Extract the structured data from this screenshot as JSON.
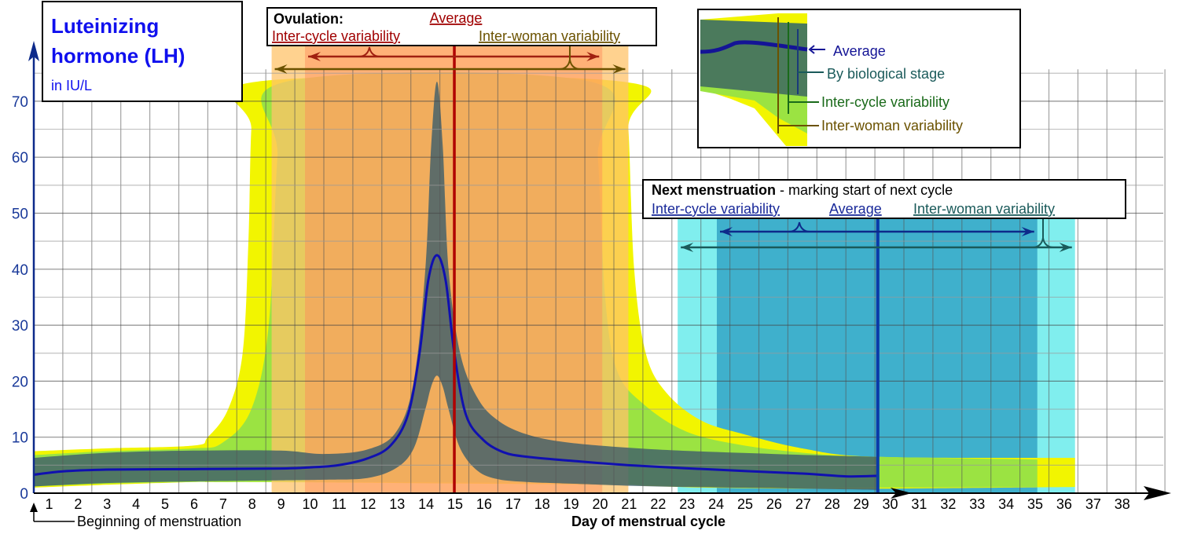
{
  "chart_data": {
    "type": "area",
    "title": "Luteinizing hormone (LH)",
    "subtitle": "in IU/L",
    "xlabel": "Day of menstrual cycle",
    "x_origin_label": "Beginning of menstruation",
    "ylim": [
      0,
      75
    ],
    "xlim": [
      0.5,
      39
    ],
    "yticks": [
      0,
      10,
      20,
      30,
      40,
      50,
      60,
      70
    ],
    "xticks": [
      1,
      2,
      3,
      4,
      5,
      6,
      7,
      8,
      9,
      10,
      11,
      12,
      13,
      14,
      15,
      16,
      17,
      18,
      19,
      20,
      21,
      22,
      23,
      24,
      25,
      26,
      27,
      28,
      29,
      30,
      31,
      32,
      33,
      34,
      35,
      36,
      37,
      38
    ],
    "grid": true,
    "colors": {
      "inter_woman": "#f2f500",
      "inter_cycle": "#9be342",
      "biological_stage": "#3f5f6a",
      "average": "#1010b0",
      "ovulation_inter_woman": "#ffc36a",
      "ovulation_inter_cycle": "#ff8a5a",
      "ovulation_average": "#b00000",
      "menstruation_inter_woman": "#80eeee",
      "menstruation_inter_cycle": "#3fb0cc",
      "menstruation_average": "#0a3aa8"
    },
    "bands": {
      "inter_woman": [
        [
          0.5,
          7.5,
          1.0
        ],
        [
          3,
          8.0,
          1.5
        ],
        [
          6,
          8.5,
          2.0
        ],
        [
          6.5,
          10,
          2.0
        ],
        [
          7.2,
          15,
          2.0
        ],
        [
          7.7,
          25,
          2.0
        ],
        [
          7.9,
          45,
          2.0
        ],
        [
          8.0,
          65,
          2.0
        ],
        [
          8.2,
          73.5,
          2.0
        ],
        [
          20.8,
          73.5,
          1.5
        ],
        [
          21.0,
          65,
          1.5
        ],
        [
          21.2,
          40,
          1.5
        ],
        [
          21.6,
          25,
          1.3
        ],
        [
          22.3,
          18,
          1.2
        ],
        [
          23.5,
          13,
          1.0
        ],
        [
          25,
          10.5,
          0.9
        ],
        [
          27,
          8,
          0.8
        ],
        [
          29.5,
          6.5,
          0.8
        ],
        [
          36.4,
          6.3,
          1.1
        ]
      ],
      "inter_cycle": [
        [
          0.5,
          6.8,
          1.2
        ],
        [
          3,
          7.5,
          1.7
        ],
        [
          6,
          8.0,
          2.0
        ],
        [
          7,
          9,
          2
        ],
        [
          8,
          15,
          2
        ],
        [
          8.6,
          30,
          2
        ],
        [
          8.9,
          60,
          2
        ],
        [
          9.2,
          73.5,
          2
        ],
        [
          19.7,
          73.5,
          1.8
        ],
        [
          19.95,
          60,
          1.8
        ],
        [
          20.2,
          35,
          1.7
        ],
        [
          20.6,
          22,
          1.6
        ],
        [
          21.5,
          16,
          1.4
        ],
        [
          23,
          11,
          1.2
        ],
        [
          25,
          8.5,
          1.0
        ],
        [
          27.5,
          7,
          0.9
        ],
        [
          29.6,
          6.5,
          1.0
        ],
        [
          35.1,
          6.0,
          1.1
        ]
      ],
      "biological_stage": [
        [
          0.5,
          6.3,
          1.2
        ],
        [
          3,
          7.2,
          1.8
        ],
        [
          6,
          7.6,
          2.1
        ],
        [
          9,
          7.6,
          2.3
        ],
        [
          10.5,
          7.0,
          2.4
        ],
        [
          12,
          7.8,
          2.7
        ],
        [
          13,
          11,
          4.5
        ],
        [
          13.6,
          20,
          8
        ],
        [
          14.0,
          40,
          15
        ],
        [
          14.2,
          62,
          19
        ],
        [
          14.4,
          73.5,
          21
        ],
        [
          14.6,
          62,
          19
        ],
        [
          14.8,
          40,
          15
        ],
        [
          15.2,
          25,
          8
        ],
        [
          15.8,
          17,
          4
        ],
        [
          16.5,
          13,
          2.5
        ],
        [
          17.5,
          10.5,
          2
        ],
        [
          19,
          9,
          1.7
        ],
        [
          22,
          7.8,
          1.2
        ],
        [
          26,
          7,
          0.9
        ],
        [
          29.6,
          6.5,
          0.6
        ]
      ]
    },
    "average": [
      [
        0.5,
        3.3
      ],
      [
        1.5,
        3.9
      ],
      [
        3,
        4.2
      ],
      [
        6,
        4.3
      ],
      [
        9,
        4.4
      ],
      [
        10,
        4.6
      ],
      [
        11,
        5
      ],
      [
        12,
        6.2
      ],
      [
        12.8,
        8.5
      ],
      [
        13.4,
        14
      ],
      [
        13.8,
        25
      ],
      [
        14.1,
        38
      ],
      [
        14.4,
        42.5
      ],
      [
        14.7,
        38
      ],
      [
        15.0,
        25
      ],
      [
        15.4,
        14
      ],
      [
        16,
        9.5
      ],
      [
        16.7,
        7.3
      ],
      [
        17.5,
        6.5
      ],
      [
        19,
        5.8
      ],
      [
        21,
        5
      ],
      [
        24,
        4.2
      ],
      [
        27,
        3.5
      ],
      [
        28.5,
        3.0
      ],
      [
        29.6,
        3.1
      ]
    ],
    "ovulation": {
      "heading": "Ovulation:",
      "average_label": "Average",
      "inter_cycle_label": "Inter-cycle variability",
      "inter_woman_label": "Inter-woman variability",
      "average_day": 15,
      "inter_cycle_range": [
        9.85,
        20.1
      ],
      "inter_woman_range": [
        8.7,
        21.0
      ]
    },
    "next_menstruation": {
      "heading": "Next menstruation",
      "heading_rest": " - marking start of next cycle",
      "inter_cycle_label": "Inter-cycle variability",
      "average_label": "Average",
      "inter_woman_label": "Inter-woman variability",
      "average_day": 29.6,
      "inter_cycle_range": [
        24.05,
        35.1
      ],
      "inter_woman_range": [
        22.7,
        36.4
      ]
    },
    "legend": {
      "placement": "top-right",
      "average": "Average",
      "biological_stage": "By biological stage",
      "inter_cycle": "Inter-cycle variability",
      "inter_woman": "Inter-woman variability"
    }
  }
}
